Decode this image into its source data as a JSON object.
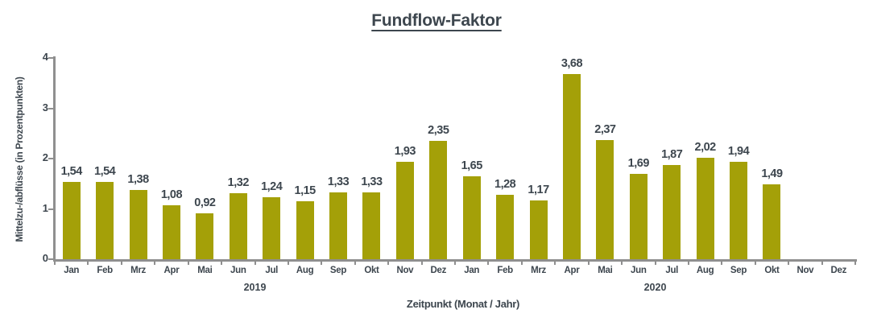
{
  "title": "Fundflow-Faktor",
  "colors": {
    "bar": "#a4a008",
    "axis": "#8f8f8f",
    "text": "#3d464e"
  },
  "chart_data": {
    "type": "bar",
    "title": "Fundflow-Faktor",
    "xlabel": "Zeitpunkt (Monat / Jahr)",
    "ylabel": "Mittelzu-/abflüsse (in Prozentpunkten)",
    "ylim": [
      0,
      4
    ],
    "yticks": [
      0,
      1,
      2,
      3,
      4
    ],
    "grid": false,
    "legend": "none",
    "categories": [
      "Jan",
      "Feb",
      "Mrz",
      "Apr",
      "Mai",
      "Jun",
      "Jul",
      "Aug",
      "Sep",
      "Okt",
      "Nov",
      "Dez",
      "Jan",
      "Feb",
      "Mrz",
      "Apr",
      "Mai",
      "Jun",
      "Jul",
      "Aug",
      "Sep",
      "Okt",
      "Nov",
      "Dez"
    ],
    "group_labels": [
      "2019",
      "2020"
    ],
    "values": [
      1.54,
      1.54,
      1.38,
      1.08,
      0.92,
      1.32,
      1.24,
      1.15,
      1.33,
      1.33,
      1.93,
      2.35,
      1.65,
      1.28,
      1.17,
      3.68,
      2.37,
      1.69,
      1.87,
      2.02,
      1.94,
      1.49,
      null,
      null
    ],
    "value_labels": [
      "1,54",
      "1,54",
      "1,38",
      "1,08",
      "0,92",
      "1,32",
      "1,24",
      "1,15",
      "1,33",
      "1,33",
      "1,93",
      "2,35",
      "1,65",
      "1,28",
      "1,17",
      "3,68",
      "2,37",
      "1,69",
      "1,87",
      "2,02",
      "1,94",
      "1,49",
      "",
      ""
    ]
  }
}
